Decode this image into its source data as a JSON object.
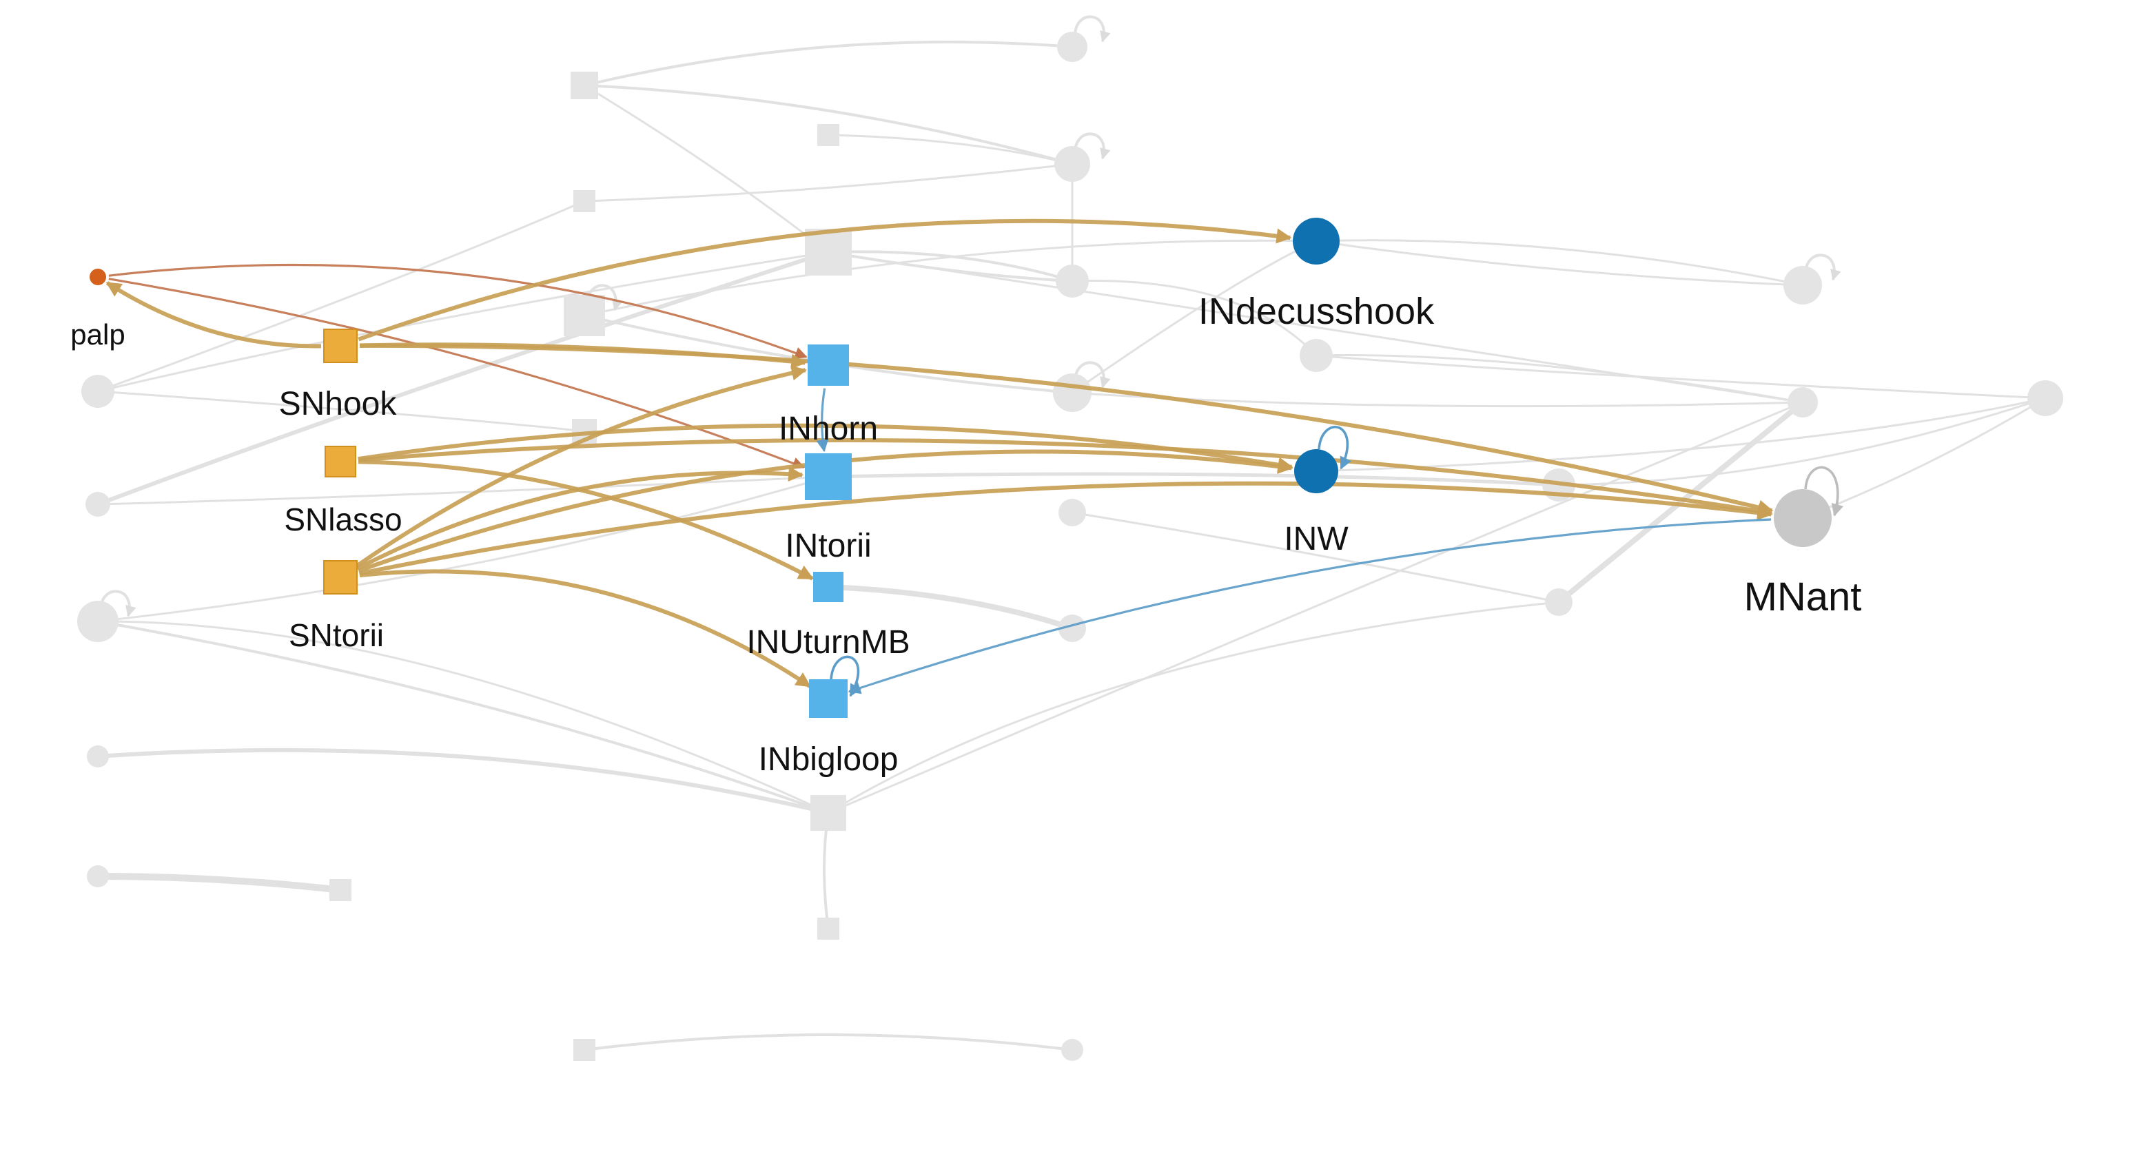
{
  "graph": {
    "colors": {
      "sensory": "#ecac3b",
      "palp": "#d5601b",
      "interneuron_light": "#56b3e9",
      "interneuron_dark": "#1071b0",
      "motor": "#c8c8c8",
      "faded_node": "#e4e4e4",
      "faded_edge": "#e1e1e1",
      "edge_sensory": "#c89f55",
      "edge_palp": "#c2754d",
      "edge_inter": "#5b9cc8"
    },
    "nodes": [
      {
        "id": "palp",
        "label": "palp",
        "shape": "circle",
        "role": "palp"
      },
      {
        "id": "SNhook",
        "label": "SNhook",
        "shape": "square",
        "role": "sensory"
      },
      {
        "id": "SNlasso",
        "label": "SNlasso",
        "shape": "square",
        "role": "sensory"
      },
      {
        "id": "SNtorii",
        "label": "SNtorii",
        "shape": "square",
        "role": "sensory"
      },
      {
        "id": "INhorn",
        "label": "INhorn",
        "shape": "square",
        "role": "interneuron_light"
      },
      {
        "id": "INtorii",
        "label": "INtorii",
        "shape": "square",
        "role": "interneuron_light"
      },
      {
        "id": "INUturnMB",
        "label": "INUturnMB",
        "shape": "square",
        "role": "interneuron_light"
      },
      {
        "id": "INbigloop",
        "label": "INbigloop",
        "shape": "square",
        "role": "interneuron_light"
      },
      {
        "id": "INdecusshook",
        "label": "INdecusshook",
        "shape": "circle",
        "role": "interneuron_dark"
      },
      {
        "id": "INW",
        "label": "INW",
        "shape": "circle",
        "role": "interneuron_dark"
      },
      {
        "id": "MNant",
        "label": "MNant",
        "shape": "circle",
        "role": "motor"
      }
    ],
    "edges": [
      {
        "from": "SNhook",
        "to": "palp",
        "type": "sensory"
      },
      {
        "from": "palp",
        "to": "INhorn",
        "type": "palp"
      },
      {
        "from": "palp",
        "to": "INtorii",
        "type": "palp"
      },
      {
        "from": "SNhook",
        "to": "INhorn",
        "type": "sensory"
      },
      {
        "from": "SNhook",
        "to": "INdecusshook",
        "type": "sensory"
      },
      {
        "from": "SNhook",
        "to": "MNant",
        "type": "sensory"
      },
      {
        "from": "SNlasso",
        "to": "INW",
        "type": "sensory"
      },
      {
        "from": "SNlasso",
        "to": "INUturnMB",
        "type": "sensory"
      },
      {
        "from": "SNlasso",
        "to": "MNant",
        "type": "sensory"
      },
      {
        "from": "SNtorii",
        "to": "INhorn",
        "type": "sensory"
      },
      {
        "from": "SNtorii",
        "to": "INtorii",
        "type": "sensory"
      },
      {
        "from": "SNtorii",
        "to": "INW",
        "type": "sensory"
      },
      {
        "from": "SNtorii",
        "to": "INbigloop",
        "type": "sensory"
      },
      {
        "from": "SNtorii",
        "to": "MNant",
        "type": "sensory"
      },
      {
        "from": "INhorn",
        "to": "INtorii",
        "type": "inter"
      },
      {
        "from": "MNant",
        "to": "INbigloop",
        "type": "inter"
      },
      {
        "from": "INW",
        "to": "INW",
        "type": "inter"
      },
      {
        "from": "INbigloop",
        "to": "INbigloop",
        "type": "inter"
      },
      {
        "from": "MNant",
        "to": "MNant",
        "type": "motor"
      }
    ]
  }
}
